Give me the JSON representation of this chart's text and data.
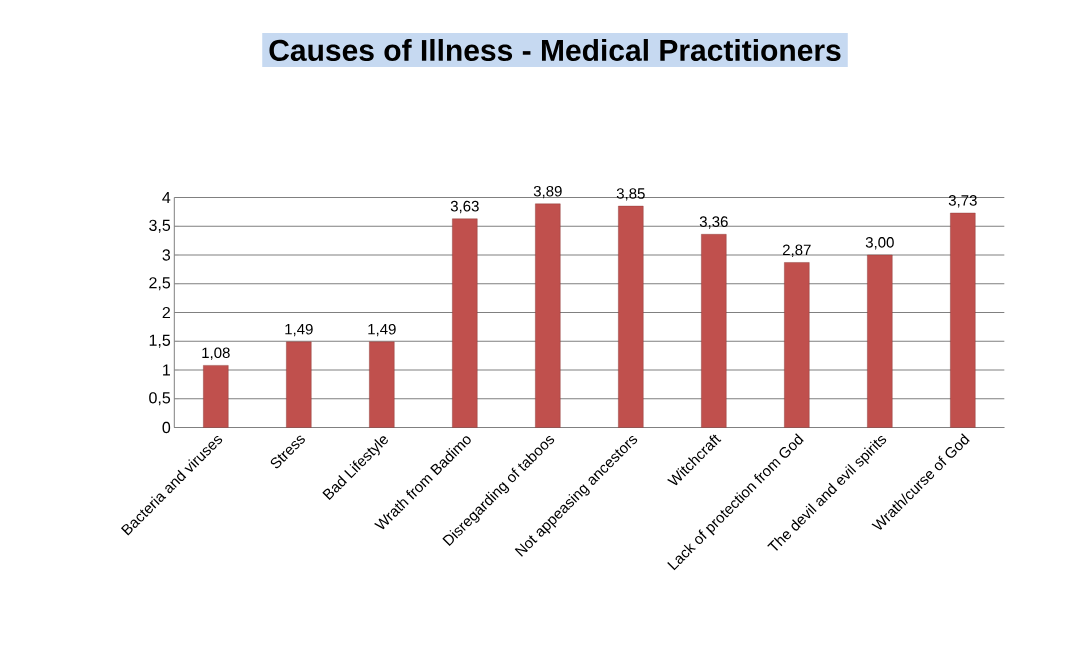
{
  "chart_data": {
    "type": "bar",
    "title": "Causes of Illness - Medical Practitioners",
    "categories": [
      "Bacteria and viruses",
      "Stress",
      "Bad Lifestyle",
      "Wrath from Badimo",
      "Disregarding of taboos",
      "Not appeasing ancestors",
      "Witchcraft",
      "Lack of protection from God",
      "The devil and evil spirits",
      "Wrath/curse of God"
    ],
    "values": [
      1.08,
      1.49,
      1.49,
      3.63,
      3.89,
      3.85,
      3.36,
      2.87,
      3.0,
      3.73
    ],
    "value_labels": [
      "1,08",
      "1,49",
      "1,49",
      "3,63",
      "3,89",
      "3,85",
      "3,36",
      "2,87",
      "3,00",
      "3,73"
    ],
    "color": "#c0504d",
    "ylim": [
      0,
      4
    ],
    "yticks": [
      0,
      {
        "value": 0.5,
        "label": "0,5"
      },
      1,
      {
        "value": 1.5,
        "label": "1,5"
      },
      2,
      {
        "value": 2.5,
        "label": "2,5"
      },
      3,
      {
        "value": 3.5,
        "label": "3,5"
      },
      4
    ],
    "grid": "y"
  }
}
